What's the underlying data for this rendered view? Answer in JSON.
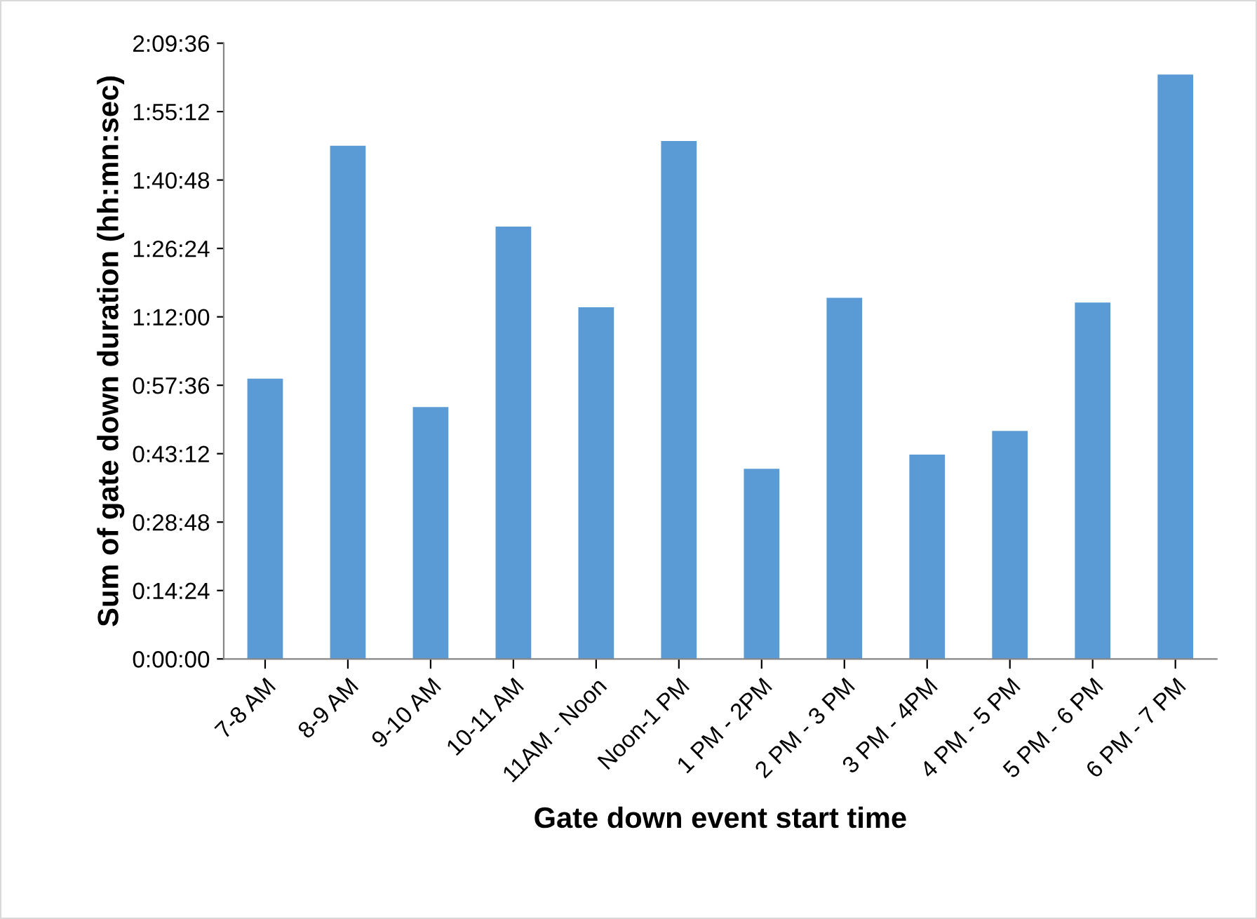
{
  "chart_data": {
    "type": "bar",
    "xlabel": "Gate down event start time",
    "ylabel": "Sum of gate down duration (hh:mn:sec)",
    "categories": [
      "7-8 AM",
      "8-9 AM",
      "9-10 AM",
      "10-11 AM",
      "11AM - Noon",
      "Noon-1 PM",
      "1 PM - 2PM",
      "2 PM - 3 PM",
      "3 PM - 4PM",
      "4 PM - 5 PM",
      "5 PM - 6 PM",
      "6 PM - 7 PM"
    ],
    "values": [
      59,
      108,
      53,
      91,
      74,
      109,
      40,
      76,
      43,
      48,
      75,
      123
    ],
    "color": "#5b9bd5",
    "ylim": [
      0,
      129.6
    ],
    "yticks": [
      {
        "value": 0,
        "label": "0:00:00"
      },
      {
        "value": 14.4,
        "label": "0:14:24"
      },
      {
        "value": 28.8,
        "label": "0:28:48"
      },
      {
        "value": 43.2,
        "label": "0:43:12"
      },
      {
        "value": 57.6,
        "label": "0:57:36"
      },
      {
        "value": 72,
        "label": "1:12:00"
      },
      {
        "value": 86.4,
        "label": "1:26:24"
      },
      {
        "value": 100.8,
        "label": "1:40:48"
      },
      {
        "value": 115.2,
        "label": "1:55:12"
      },
      {
        "value": 129.6,
        "label": "2:09:36"
      }
    ],
    "grid": false
  }
}
